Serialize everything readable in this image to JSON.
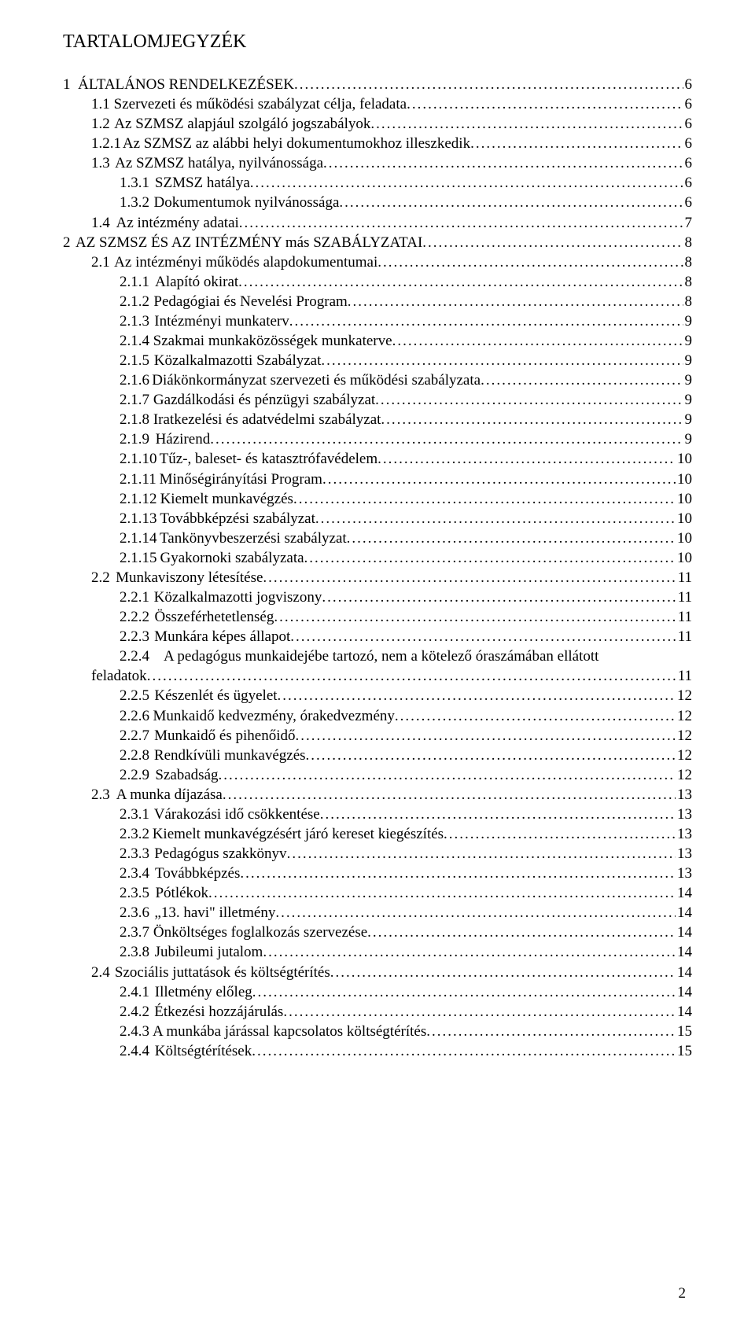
{
  "title": "TARTALOMJEGYZÉK",
  "page_number": "2",
  "toc": [
    {
      "indent": 0,
      "num": "1",
      "label": "ÁLTALÁNOS RENDELKEZÉSEK",
      "page": "6",
      "gap": 28
    },
    {
      "indent": 1,
      "num": "1.1",
      "label": "Szervezeti és működési szabályzat célja, feladata",
      "page": "6",
      "gap": 20
    },
    {
      "indent": 1,
      "num": "1.2",
      "label": "Az SZMSZ alapjául szolgáló jogszabályok",
      "page": "6",
      "gap": 20
    },
    {
      "indent": 1,
      "num": "1.2.1",
      "label": "Az SZMSZ az alábbi helyi dokumentumokhoz illeszkedik",
      "page": "6",
      "gap": 10
    },
    {
      "indent": 1,
      "num": "1.3",
      "label": "Az SZMSZ hatálya, nyilvánossága",
      "page": "6",
      "gap": 20
    },
    {
      "indent": 2,
      "num": "1.3.1",
      "label": "SZMSZ hatálya",
      "page": "6",
      "gap": 18
    },
    {
      "indent": 2,
      "num": "1.3.2",
      "label": "Dokumentumok nyilvánossága",
      "page": "6",
      "gap": 18
    },
    {
      "indent": 1,
      "num": "1.4",
      "label": "Az intézmény adatai",
      "page": "7",
      "gap": 20
    },
    {
      "indent": 0,
      "num": "2",
      "label": "AZ SZMSZ ÉS AZ INTÉZMÉNY más SZABÁLYZATAI",
      "page": "8",
      "gap": 28
    },
    {
      "indent": 1,
      "num": "2.1",
      "label": "Az intézményi működés alapdokumentumai",
      "page": "8",
      "gap": 20
    },
    {
      "indent": 2,
      "num": "2.1.1",
      "label": "Alapító okirat",
      "page": "8",
      "gap": 18
    },
    {
      "indent": 2,
      "num": "2.1.2",
      "label": "Pedagógiai és Nevelési Program",
      "page": "8",
      "gap": 18
    },
    {
      "indent": 2,
      "num": "2.1.3",
      "label": "Intézményi munkaterv",
      "page": "9",
      "gap": 18
    },
    {
      "indent": 2,
      "num": "2.1.4",
      "label": "Szakmai munkaközösségek munkaterve",
      "page": "9",
      "gap": 18
    },
    {
      "indent": 2,
      "num": "2.1.5",
      "label": "Közalkalmazotti Szabályzat",
      "page": "9",
      "gap": 18
    },
    {
      "indent": 2,
      "num": "2.1.6",
      "label": "Diákönkormányzat szervezeti és működési szabályzata",
      "page": "9",
      "gap": 18
    },
    {
      "indent": 2,
      "num": "2.1.7",
      "label": "Gazdálkodási és pénzügyi szabályzat",
      "page": "9",
      "gap": 18
    },
    {
      "indent": 2,
      "num": "2.1.8",
      "label": "Iratkezelési  és adatvédelmi szabályzat",
      "page": "9",
      "gap": 18
    },
    {
      "indent": 2,
      "num": "2.1.9",
      "label": "Házirend",
      "page": "9",
      "gap": 18
    },
    {
      "indent": 2,
      "num": "2.1.10",
      "label": "Tűz-, baleset- és katasztrófavédelem",
      "page": "10",
      "gap": 12
    },
    {
      "indent": 2,
      "num": "2.1.11",
      "label": "Minőségirányítási Program",
      "page": "10",
      "gap": 12
    },
    {
      "indent": 2,
      "num": "2.1.12",
      "label": "Kiemelt munkavégzés",
      "page": "10",
      "gap": 12
    },
    {
      "indent": 2,
      "num": "2.1.13",
      "label": "Továbbképzési szabályzat",
      "page": "10",
      "gap": 12
    },
    {
      "indent": 2,
      "num": "2.1.14",
      "label": "Tankönyvbeszerzési szabályzat",
      "page": "10",
      "gap": 12
    },
    {
      "indent": 2,
      "num": "2.1.15",
      "label": "Gyakornoki szabályzata",
      "page": "10",
      "gap": 12
    },
    {
      "indent": 1,
      "num": "2.2",
      "label": "Munkaviszony létesítése",
      "page": "11",
      "gap": 20
    },
    {
      "indent": 2,
      "num": "2.2.1",
      "label": "Közalkalmazotti jogviszony",
      "page": "11",
      "gap": 18
    },
    {
      "indent": 2,
      "num": "2.2.2",
      "label": "Összeférhetetlenség",
      "page": "11",
      "gap": 18
    },
    {
      "indent": 2,
      "num": "2.2.3",
      "label": "Munkára képes állapot",
      "page": "11",
      "gap": 18
    },
    {
      "indent": -1,
      "num": "2.2.4",
      "label_head": "A pedagógus munkaidejébe tartozó, nem a kötelező óraszámában ellátott",
      "label_tail": "feladatok",
      "page": "11",
      "gap_head": 18,
      "gap_tail": 0
    },
    {
      "indent": 2,
      "num": "2.2.5",
      "label": "Készenlét és ügyelet",
      "page": "12",
      "gap": 18
    },
    {
      "indent": 2,
      "num": "2.2.6",
      "label": "Munkaidő kedvezmény, órakedvezmény",
      "page": "12",
      "gap": 18
    },
    {
      "indent": 2,
      "num": "2.2.7",
      "label": "Munkaidő és pihenőidő",
      "page": "12",
      "gap": 18
    },
    {
      "indent": 2,
      "num": "2.2.8",
      "label": "Rendkívüli munkavégzés",
      "page": "12",
      "gap": 18
    },
    {
      "indent": 2,
      "num": "2.2.9",
      "label": "Szabadság",
      "page": "12",
      "gap": 18
    },
    {
      "indent": 1,
      "num": "2.3",
      "label": "A munka díjazása",
      "page": "13",
      "gap": 20
    },
    {
      "indent": 2,
      "num": "2.3.1",
      "label": "Várakozási idő csökkentése",
      "page": "13",
      "gap": 18
    },
    {
      "indent": 2,
      "num": "2.3.2",
      "label": "Kiemelt munkavégzésért járó kereset kiegészítés",
      "page": "13",
      "gap": 18
    },
    {
      "indent": 2,
      "num": "2.3.3",
      "label": "Pedagógus szakkönyv",
      "page": "13",
      "gap": 18
    },
    {
      "indent": 2,
      "num": "2.3.4",
      "label": "Továbbképzés",
      "page": "13",
      "gap": 18
    },
    {
      "indent": 2,
      "num": "2.3.5",
      "label": "Pótlékok",
      "page": "14",
      "gap": 18
    },
    {
      "indent": 2,
      "num": "2.3.6",
      "label": "„13. havi\" illetmény",
      "page": "14",
      "gap": 18
    },
    {
      "indent": 2,
      "num": "2.3.7",
      "label": "Önköltséges foglalkozás szervezése",
      "page": "14",
      "gap": 18
    },
    {
      "indent": 2,
      "num": "2.3.8",
      "label": "Jubileumi jutalom",
      "page": "14",
      "gap": 18
    },
    {
      "indent": 1,
      "num": "2.4",
      "label": "Szociális juttatások és költségtérítés",
      "page": "14",
      "gap": 20
    },
    {
      "indent": 2,
      "num": "2.4.1",
      "label": "Illetmény előleg",
      "page": "14",
      "gap": 18
    },
    {
      "indent": 2,
      "num": "2.4.2",
      "label": "Étkezési hozzájárulás",
      "page": "14",
      "gap": 18
    },
    {
      "indent": 2,
      "num": "2.4.3",
      "label": "A munkába járással kapcsolatos költségtérítés",
      "page": "15",
      "gap": 18
    },
    {
      "indent": 2,
      "num": "2.4.4",
      "label": "Költségtérítések",
      "page": "15",
      "gap": 18
    }
  ]
}
